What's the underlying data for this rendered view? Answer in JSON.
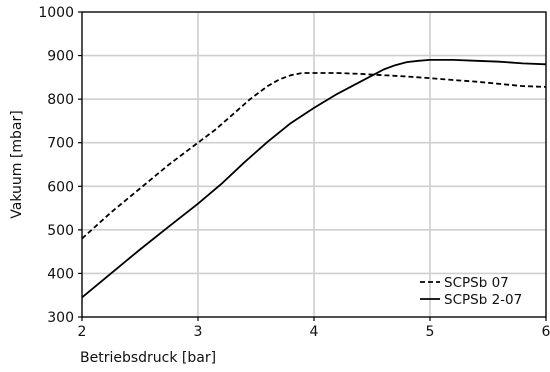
{
  "chart_data": {
    "type": "line",
    "title": "",
    "xlabel": "Betriebsdruck [bar]",
    "ylabel": "Vakuum [mbar]",
    "xlim": [
      2,
      6
    ],
    "ylim": [
      300,
      1000
    ],
    "x_ticks": [
      2,
      3,
      4,
      5,
      6
    ],
    "y_ticks": [
      300,
      400,
      500,
      600,
      700,
      800,
      900,
      1000
    ],
    "grid": true,
    "legend_position": "bottom-right",
    "series": [
      {
        "name": "SCPSb 07",
        "style": "dashed",
        "color": "#000000",
        "x": [
          2.0,
          2.25,
          2.5,
          2.75,
          3.0,
          3.15,
          3.3,
          3.45,
          3.6,
          3.7,
          3.8,
          3.9,
          4.0,
          4.2,
          4.4,
          4.6,
          4.8,
          5.0,
          5.2,
          5.4,
          5.6,
          5.8,
          6.0
        ],
        "y": [
          480,
          540,
          595,
          650,
          700,
          730,
          765,
          800,
          830,
          845,
          855,
          860,
          860,
          860,
          858,
          855,
          852,
          848,
          844,
          840,
          835,
          830,
          828
        ]
      },
      {
        "name": "SCPSb 2-07",
        "style": "solid",
        "color": "#000000",
        "x": [
          2.0,
          2.25,
          2.5,
          2.75,
          3.0,
          3.2,
          3.4,
          3.6,
          3.8,
          4.0,
          4.2,
          4.4,
          4.6,
          4.7,
          4.8,
          4.9,
          5.0,
          5.2,
          5.4,
          5.6,
          5.8,
          6.0
        ],
        "y": [
          345,
          400,
          455,
          508,
          560,
          605,
          655,
          702,
          745,
          780,
          812,
          840,
          868,
          878,
          885,
          888,
          890,
          890,
          888,
          886,
          882,
          880
        ]
      }
    ]
  }
}
